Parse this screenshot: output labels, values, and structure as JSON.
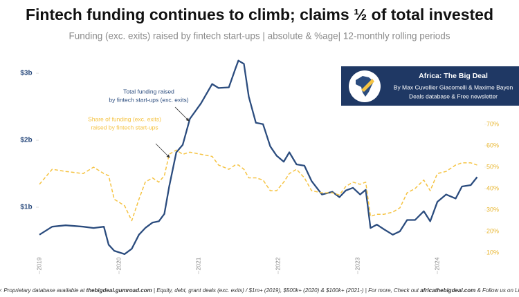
{
  "chart_data": {
    "type": "line",
    "title": "Fintech funding continues to climb; claims ½ of total invested",
    "subtitle": "Funding (exc. exits) raised by fintech start-ups | absolute & %age| 12-monthly rolling periods",
    "x": [
      2019.0,
      2019.16,
      2019.33,
      2019.55,
      2019.68,
      2019.81,
      2019.87,
      2019.94,
      2020.07,
      2020.16,
      2020.25,
      2020.33,
      2020.42,
      2020.5,
      2020.57,
      2020.63,
      2020.72,
      2020.8,
      2020.89,
      2021.03,
      2021.17,
      2021.25,
      2021.38,
      2021.46,
      2021.5,
      2021.57,
      2021.63,
      2021.72,
      2021.81,
      2021.9,
      2021.98,
      2022.07,
      2022.14,
      2022.23,
      2022.33,
      2022.42,
      2022.55,
      2022.68,
      2022.77,
      2022.85,
      2022.94,
      2023.03,
      2023.1,
      2023.16,
      2023.24,
      2023.33,
      2023.44,
      2023.53,
      2023.62,
      2023.72,
      2023.83,
      2023.91,
      2024.0,
      2024.11,
      2024.23,
      2024.31,
      2024.42,
      2024.5
    ],
    "series": [
      {
        "name": "Total funding raised by fintech start-ups (exc. exits)",
        "color": "#2b4c7e",
        "values": [
          0.59,
          0.71,
          0.73,
          0.71,
          0.69,
          0.71,
          0.44,
          0.35,
          0.3,
          0.38,
          0.59,
          0.69,
          0.77,
          0.79,
          0.9,
          1.31,
          1.82,
          1.93,
          2.32,
          2.55,
          2.84,
          2.78,
          2.79,
          3.06,
          3.19,
          3.14,
          2.65,
          2.26,
          2.24,
          1.91,
          1.77,
          1.68,
          1.82,
          1.64,
          1.62,
          1.39,
          1.19,
          1.23,
          1.15,
          1.25,
          1.29,
          1.19,
          1.26,
          0.69,
          0.74,
          0.67,
          0.59,
          0.64,
          0.81,
          0.81,
          0.94,
          0.79,
          1.08,
          1.19,
          1.13,
          1.31,
          1.33,
          1.45
        ]
      },
      {
        "name": "Share of funding (exc. exits) raised by fintech start-ups",
        "color": "#f5c342",
        "axis": "y2",
        "dashed": true,
        "values": [
          42,
          49,
          48,
          47,
          50,
          47,
          46,
          35,
          32,
          25,
          35,
          43,
          45,
          43,
          46,
          56,
          58,
          56,
          57,
          56,
          55,
          51,
          49,
          51,
          51,
          49,
          45,
          45,
          44,
          39,
          39,
          43,
          47,
          49,
          45,
          39,
          38,
          38,
          37,
          41,
          43,
          42,
          43,
          27,
          28,
          28,
          29,
          31,
          38,
          40,
          44,
          39,
          47,
          48,
          51,
          52,
          52,
          51
        ]
      }
    ],
    "xlim": [
      2019,
      2025
    ],
    "xticks": [
      2019,
      2020,
      2021,
      2022,
      2023,
      2024
    ],
    "ylim": [
      0,
      3.3
    ],
    "yticks": [
      {
        "value": 1,
        "label": "$1b"
      },
      {
        "value": 2,
        "label": "$2b"
      },
      {
        "value": 3,
        "label": "$3b"
      }
    ],
    "y2lim": [
      0,
      103.2
    ],
    "y2ticks": [
      {
        "value": 10,
        "label": "10%"
      },
      {
        "value": 20,
        "label": "20%"
      },
      {
        "value": 30,
        "label": "30%"
      },
      {
        "value": 40,
        "label": "40%"
      },
      {
        "value": 50,
        "label": "50%"
      },
      {
        "value": 60,
        "label": "60%"
      },
      {
        "value": 70,
        "label": "70%"
      }
    ],
    "annotations": [
      {
        "lines": [
          "Total funding raised",
          "by fintech start-ups (exc. exits)"
        ],
        "color": "#2b4c7e"
      },
      {
        "lines": [
          "Share of funding (exc. exits)",
          "raised by fintech start-ups"
        ],
        "color": "#f5c342"
      }
    ],
    "infobox": {
      "title": "Africa: The Big Deal",
      "authors": "By Max Cuvellier Giacomelli & Maxime Bayen",
      "tagline": "Deals database & Free newsletter"
    },
    "footer": [
      "Source: Proprietary database available at ",
      "thebigdeal.gumroad.com",
      " | Equity, debt, grant deals (exc. exits) / $1m+ (2019), $500k+ (2020) & $100k+ (2021-) | For more, Check out ",
      "africathebigdeal.com",
      " & Follow us on LinkedIn"
    ]
  }
}
